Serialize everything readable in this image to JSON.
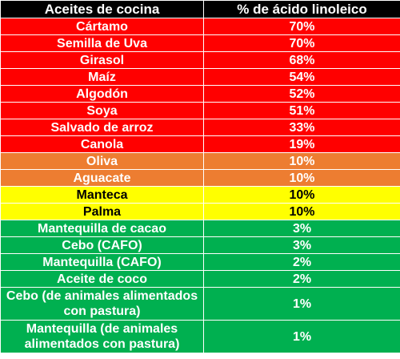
{
  "header": {
    "col1": "Aceites de cocina",
    "col2": "% de ácido linoleico"
  },
  "colors": {
    "red": "#ff0000",
    "orange": "#ed7d31",
    "yellow": "#ffff00",
    "green": "#00b050"
  },
  "rows": [
    {
      "name": "Cártamo",
      "value": "70%",
      "color": "#ff0000",
      "text_color": "#ffffff"
    },
    {
      "name": "Semilla de Uva",
      "value": "70%",
      "color": "#ff0000",
      "text_color": "#ffffff"
    },
    {
      "name": "Girasol",
      "value": "68%",
      "color": "#ff0000",
      "text_color": "#ffffff"
    },
    {
      "name": "Maíz",
      "value": "54%",
      "color": "#ff0000",
      "text_color": "#ffffff"
    },
    {
      "name": "Algodón",
      "value": "52%",
      "color": "#ff0000",
      "text_color": "#ffffff"
    },
    {
      "name": "Soya",
      "value": "51%",
      "color": "#ff0000",
      "text_color": "#ffffff"
    },
    {
      "name": "Salvado de arroz",
      "value": "33%",
      "color": "#ff0000",
      "text_color": "#ffffff"
    },
    {
      "name": "Canola",
      "value": "19%",
      "color": "#ff0000",
      "text_color": "#ffffff"
    },
    {
      "name": "Oliva",
      "value": "10%",
      "color": "#ed7d31",
      "text_color": "#ffffff"
    },
    {
      "name": "Aguacate",
      "value": "10%",
      "color": "#ed7d31",
      "text_color": "#ffffff"
    },
    {
      "name": "Manteca",
      "value": "10%",
      "color": "#ffff00",
      "text_color": "#000000"
    },
    {
      "name": "Palma",
      "value": "10%",
      "color": "#ffff00",
      "text_color": "#000000"
    },
    {
      "name": "Mantequilla de cacao",
      "value": "3%",
      "color": "#00b050",
      "text_color": "#ffffff"
    },
    {
      "name": "Cebo (CAFO)",
      "value": "3%",
      "color": "#00b050",
      "text_color": "#ffffff"
    },
    {
      "name": "Mantequilla (CAFO)",
      "value": "2%",
      "color": "#00b050",
      "text_color": "#ffffff"
    },
    {
      "name": "Aceite de coco",
      "value": "2%",
      "color": "#00b050",
      "text_color": "#ffffff"
    },
    {
      "name": "Cebo (de animales alimentados con pastura)",
      "value": "1%",
      "color": "#00b050",
      "text_color": "#ffffff",
      "tall": true
    },
    {
      "name": "Mantequilla (de animales alimentados con pastura)",
      "value": "1%",
      "color": "#00b050",
      "text_color": "#ffffff",
      "tall": true
    }
  ]
}
